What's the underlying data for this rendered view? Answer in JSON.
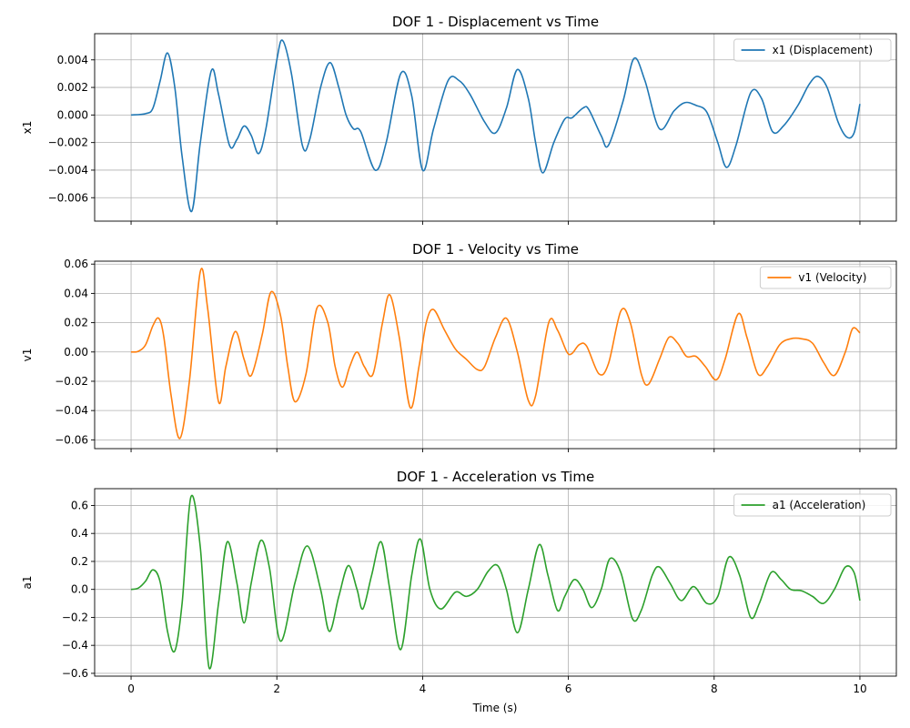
{
  "figure": {
    "shared_xlabel": "Time (s)"
  },
  "chart_data": [
    {
      "type": "line",
      "title": "DOF 1 - Displacement vs Time",
      "xlabel": "",
      "ylabel": "x1",
      "xlim": [
        -0.5,
        10.5
      ],
      "ylim": [
        -0.0077,
        0.0059
      ],
      "xticks": [
        0,
        2,
        4,
        6,
        8,
        10
      ],
      "xtick_labels_visible": false,
      "yticks": [
        -0.006,
        -0.004,
        -0.002,
        0.0,
        0.002,
        0.004
      ],
      "ytick_labels": [
        "−0.006",
        "−0.004",
        "−0.002",
        "0.000",
        "0.002",
        "0.004"
      ],
      "grid": true,
      "legend_position": "top-right",
      "series": [
        {
          "name": "x1 (Displacement)",
          "color": "#1f77b4",
          "x": [
            0,
            0.2,
            0.3,
            0.4,
            0.5,
            0.6,
            0.7,
            0.83,
            0.95,
            1.1,
            1.2,
            1.35,
            1.45,
            1.55,
            1.65,
            1.75,
            1.85,
            2.0,
            2.08,
            2.2,
            2.35,
            2.45,
            2.6,
            2.73,
            2.85,
            2.95,
            3.05,
            3.15,
            3.35,
            3.5,
            3.7,
            3.85,
            4.0,
            4.15,
            4.35,
            4.5,
            4.65,
            4.85,
            5.0,
            5.15,
            5.3,
            5.45,
            5.55,
            5.65,
            5.8,
            5.95,
            6.05,
            6.2,
            6.28,
            6.45,
            6.55,
            6.75,
            6.9,
            7.05,
            7.25,
            7.45,
            7.6,
            7.75,
            7.9,
            8.05,
            8.17,
            8.3,
            8.5,
            8.65,
            8.8,
            8.95,
            9.15,
            9.3,
            9.42,
            9.55,
            9.7,
            9.82,
            9.92,
            10.0
          ],
          "y": [
            0,
            0.0001,
            0.0005,
            0.0025,
            0.0045,
            0.002,
            -0.003,
            -0.007,
            -0.002,
            0.0032,
            0.0015,
            -0.0022,
            -0.0018,
            -0.0008,
            -0.0015,
            -0.0028,
            -0.001,
            0.004,
            0.0054,
            0.003,
            -0.0022,
            -0.0018,
            0.002,
            0.0038,
            0.002,
            0.0,
            -0.001,
            -0.0012,
            -0.004,
            -0.002,
            0.003,
            0.0014,
            -0.004,
            -0.001,
            0.0025,
            0.0025,
            0.0015,
            -0.0005,
            -0.0013,
            0.0005,
            0.0033,
            0.0012,
            -0.002,
            -0.0042,
            -0.002,
            -0.0003,
            -0.0002,
            0.0005,
            0.0004,
            -0.0015,
            -0.0022,
            0.001,
            0.0041,
            0.0025,
            -0.001,
            0.0003,
            0.0009,
            0.0007,
            0.0002,
            -0.002,
            -0.0038,
            -0.0022,
            0.0016,
            0.0012,
            -0.0012,
            -0.0008,
            0.0007,
            0.0022,
            0.0028,
            0.002,
            -0.0005,
            -0.0016,
            -0.0013,
            0.0008
          ]
        }
      ]
    },
    {
      "type": "line",
      "title": "DOF 1 - Velocity vs Time",
      "xlabel": "",
      "ylabel": "v1",
      "xlim": [
        -0.5,
        10.5
      ],
      "ylim": [
        -0.066,
        0.062
      ],
      "xticks": [
        0,
        2,
        4,
        6,
        8,
        10
      ],
      "xtick_labels_visible": false,
      "yticks": [
        -0.06,
        -0.04,
        -0.02,
        0.0,
        0.02,
        0.04,
        0.06
      ],
      "ytick_labels": [
        "−0.06",
        "−0.04",
        "−0.02",
        "0.00",
        "0.02",
        "0.04",
        "0.06"
      ],
      "grid": true,
      "legend_position": "top-right",
      "series": [
        {
          "name": "v1 (Velocity)",
          "color": "#ff7f0e",
          "x": [
            0,
            0.1,
            0.2,
            0.3,
            0.38,
            0.45,
            0.55,
            0.67,
            0.8,
            0.95,
            1.05,
            1.2,
            1.3,
            1.43,
            1.55,
            1.65,
            1.8,
            1.92,
            2.05,
            2.15,
            2.25,
            2.4,
            2.55,
            2.7,
            2.8,
            2.9,
            3.0,
            3.1,
            3.2,
            3.32,
            3.45,
            3.55,
            3.68,
            3.83,
            3.95,
            4.05,
            4.15,
            4.3,
            4.45,
            4.6,
            4.75,
            4.85,
            5.0,
            5.15,
            5.3,
            5.45,
            5.55,
            5.73,
            5.85,
            5.98,
            6.05,
            6.15,
            6.25,
            6.42,
            6.55,
            6.72,
            6.85,
            7.0,
            7.1,
            7.25,
            7.38,
            7.5,
            7.62,
            7.75,
            7.88,
            8.03,
            8.15,
            8.33,
            8.45,
            8.6,
            8.73,
            8.9,
            9.05,
            9.2,
            9.35,
            9.5,
            9.65,
            9.8,
            9.9,
            10.0
          ],
          "y": [
            0,
            0.0005,
            0.005,
            0.018,
            0.023,
            0.01,
            -0.03,
            -0.059,
            -0.02,
            0.055,
            0.03,
            -0.034,
            -0.01,
            0.014,
            -0.005,
            -0.016,
            0.012,
            0.041,
            0.025,
            -0.01,
            -0.034,
            -0.015,
            0.03,
            0.02,
            -0.01,
            -0.024,
            -0.01,
            0.0,
            -0.01,
            -0.015,
            0.02,
            0.039,
            0.01,
            -0.038,
            -0.01,
            0.02,
            0.029,
            0.015,
            0.002,
            -0.005,
            -0.012,
            -0.01,
            0.01,
            0.023,
            0.0,
            -0.033,
            -0.03,
            0.02,
            0.015,
            0.0,
            -0.001,
            0.005,
            0.004,
            -0.015,
            -0.008,
            0.028,
            0.02,
            -0.015,
            -0.022,
            -0.005,
            0.01,
            0.006,
            -0.003,
            -0.003,
            -0.01,
            -0.019,
            -0.005,
            0.026,
            0.01,
            -0.015,
            -0.01,
            0.005,
            0.009,
            0.009,
            0.006,
            -0.007,
            -0.016,
            0.0,
            0.016,
            0.013
          ]
        }
      ]
    },
    {
      "type": "line",
      "title": "DOF 1 - Acceleration vs Time",
      "xlabel": "Time (s)",
      "ylabel": "a1",
      "xlim": [
        -0.5,
        10.5
      ],
      "ylim": [
        -0.62,
        0.72
      ],
      "xticks": [
        0,
        2,
        4,
        6,
        8,
        10
      ],
      "xtick_labels": [
        "0",
        "2",
        "4",
        "6",
        "8",
        "10"
      ],
      "xtick_labels_visible": true,
      "yticks": [
        -0.6,
        -0.4,
        -0.2,
        0.0,
        0.2,
        0.4,
        0.6
      ],
      "ytick_labels": [
        "−0.6",
        "−0.4",
        "−0.2",
        "0.0",
        "0.2",
        "0.4",
        "0.6"
      ],
      "grid": true,
      "legend_position": "top-right",
      "series": [
        {
          "name": "a1 (Acceleration)",
          "color": "#2ca02c",
          "x": [
            0,
            0.1,
            0.2,
            0.3,
            0.4,
            0.5,
            0.6,
            0.7,
            0.82,
            0.95,
            1.07,
            1.2,
            1.32,
            1.45,
            1.55,
            1.65,
            1.78,
            1.9,
            2.05,
            2.25,
            2.42,
            2.6,
            2.72,
            2.85,
            2.98,
            3.1,
            3.18,
            3.3,
            3.43,
            3.55,
            3.7,
            3.85,
            3.97,
            4.1,
            4.25,
            4.45,
            4.6,
            4.75,
            4.9,
            5.03,
            5.15,
            5.3,
            5.45,
            5.6,
            5.72,
            5.85,
            5.95,
            6.08,
            6.2,
            6.32,
            6.45,
            6.57,
            6.72,
            6.88,
            7.0,
            7.15,
            7.25,
            7.4,
            7.55,
            7.72,
            7.9,
            8.05,
            8.2,
            8.35,
            8.5,
            8.62,
            8.78,
            8.92,
            9.05,
            9.2,
            9.35,
            9.5,
            9.65,
            9.8,
            9.92,
            10.0
          ],
          "y": [
            0,
            0.01,
            0.06,
            0.14,
            0.05,
            -0.3,
            -0.44,
            -0.1,
            0.66,
            0.3,
            -0.56,
            -0.1,
            0.34,
            0.05,
            -0.24,
            0.05,
            0.35,
            0.15,
            -0.37,
            0.05,
            0.31,
            0.0,
            -0.3,
            -0.05,
            0.17,
            0.0,
            -0.14,
            0.1,
            0.34,
            0.0,
            -0.43,
            0.1,
            0.36,
            0.0,
            -0.14,
            -0.02,
            -0.05,
            0.0,
            0.13,
            0.17,
            0.0,
            -0.31,
            0.0,
            0.32,
            0.1,
            -0.15,
            -0.05,
            0.07,
            0.0,
            -0.13,
            0.0,
            0.22,
            0.12,
            -0.21,
            -0.15,
            0.1,
            0.16,
            0.04,
            -0.08,
            0.02,
            -0.1,
            -0.05,
            0.23,
            0.1,
            -0.2,
            -0.1,
            0.12,
            0.07,
            0.0,
            -0.01,
            -0.05,
            -0.1,
            0.0,
            0.16,
            0.12,
            -0.08
          ]
        }
      ]
    }
  ]
}
